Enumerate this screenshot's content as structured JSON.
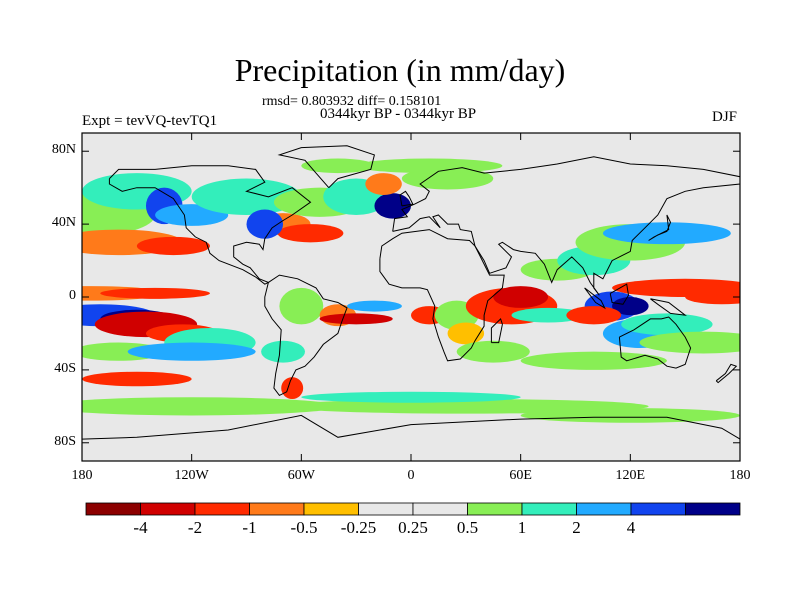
{
  "title": "Precipitation (in mm/day)",
  "stats_line": "rmsd= 0.803932 diff= 0.158101",
  "period_line": "0344kyr BP - 0344kyr BP",
  "experiment_label": "Expt = tevVQ-tevTQ1",
  "season_label": "DJF",
  "lat_ticks": [
    "80N",
    "40N",
    "0",
    "40S",
    "80S"
  ],
  "lon_ticks": [
    "180",
    "120W",
    "60W",
    "0",
    "60E",
    "120E",
    "180"
  ],
  "colorbar": {
    "colors": [
      "#8c0000",
      "#d00000",
      "#ff2a00",
      "#ff7a1a",
      "#ffbf00",
      "#e8e8e8",
      "#e8e8e8",
      "#88ee55",
      "#33eebb",
      "#22aaff",
      "#1144ee",
      "#000088"
    ],
    "labels": [
      "-4",
      "-2",
      "-1",
      "-0.5",
      "-0.25",
      "0.25",
      "0.5",
      "1",
      "2",
      "4"
    ]
  },
  "background_color": "#e8e8e8"
}
